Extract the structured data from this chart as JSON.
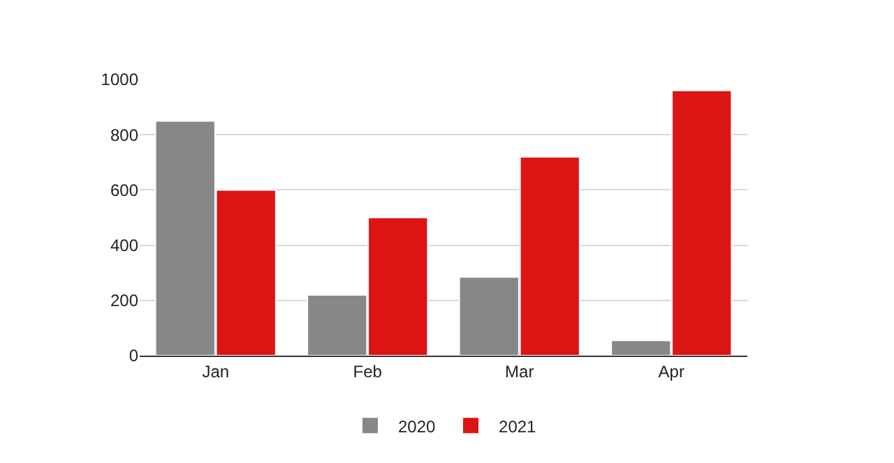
{
  "chart_data": {
    "type": "bar",
    "categories": [
      "Jan",
      "Feb",
      "Mar",
      "Apr"
    ],
    "series": [
      {
        "name": "2020",
        "color": "#878787",
        "values": [
          850,
          220,
          285,
          55
        ]
      },
      {
        "name": "2021",
        "color": "#dc1414",
        "values": [
          600,
          500,
          720,
          960
        ]
      }
    ],
    "ylim": [
      0,
      1000
    ],
    "yticks": [
      0,
      200,
      400,
      600,
      800,
      1000
    ],
    "grid": "y",
    "legend": "bottom"
  }
}
